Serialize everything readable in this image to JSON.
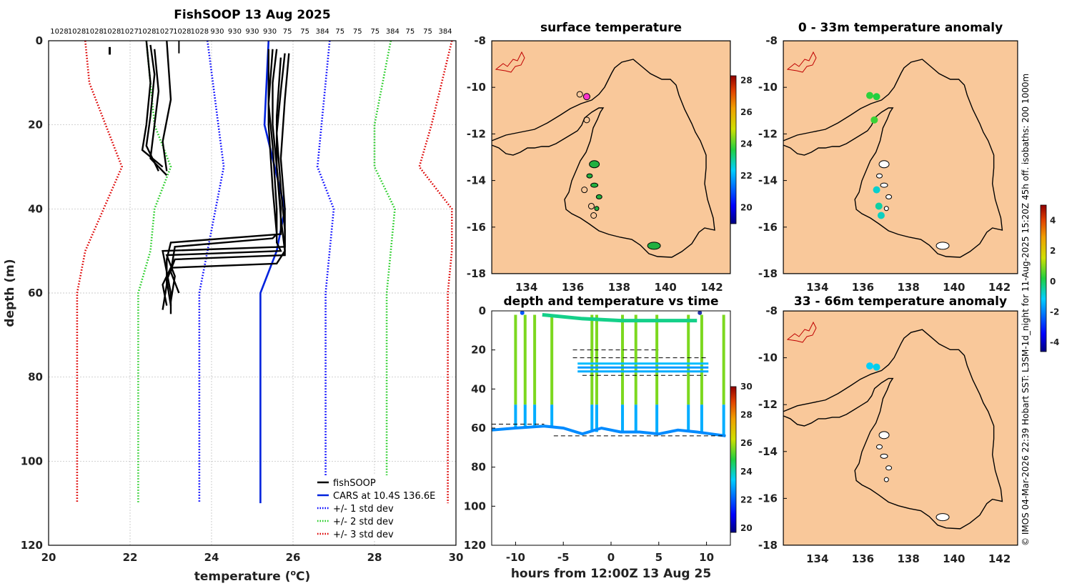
{
  "profile": {
    "title": "FishSOOP 13 Aug 2025",
    "xlabel": "temperature (",
    "xlabel_sup": "o",
    "xlabel_end": "C)",
    "ylabel": "depth (m)",
    "top_labels": [
      "1028",
      "1028",
      "1028",
      "1028",
      "1027",
      "1028",
      "1027",
      "1028",
      "1028",
      "930",
      "930",
      "930",
      "930",
      "75",
      "75",
      "384",
      "75",
      "75",
      "75",
      "384",
      "75",
      "75",
      "384"
    ],
    "legend": [
      "fishSOOP",
      "CARS at 10.4S 136.6E",
      "+/- 1 std dev",
      "+/- 2 std dev",
      "+/- 3 std dev"
    ],
    "colors": {
      "fishsoop": "#000000",
      "cars": "#0022dd",
      "std1": "#0000ff",
      "std2": "#22cc22",
      "std3": "#dd0000"
    }
  },
  "surface_map": {
    "title": "surface temperature",
    "colorbar_ticks": [
      "28",
      "26",
      "24",
      "22",
      "20"
    ]
  },
  "time_plot": {
    "title": "depth and temperature vs time",
    "xlabel": "hours from 12:00Z 13 Aug 25",
    "colorbar_ticks": [
      "30",
      "28",
      "26",
      "24",
      "22",
      "20"
    ]
  },
  "anom_map_1": {
    "title": "0 - 33m temperature anomaly"
  },
  "anom_map_2": {
    "title": "33 - 66m temperature anomaly"
  },
  "anom_colorbar_ticks": [
    "4",
    "2",
    "0",
    "-2",
    "-4"
  ],
  "credit": "© IMOS 04-Mar-2026 22:39 Hobart SST: L3SM-1d_night for 11-Aug-2025 15:20Z 45h off. isobaths: 200  1000m",
  "chart_data": [
    {
      "type": "line",
      "title": "FishSOOP 13 Aug 2025",
      "xlabel": "temperature (oC)",
      "ylabel": "depth (m)",
      "xlim": [
        20,
        30
      ],
      "ylim": [
        120,
        0
      ],
      "xticks": [
        20,
        22,
        24,
        26,
        28,
        30
      ],
      "yticks": [
        0,
        20,
        40,
        60,
        80,
        100,
        120
      ],
      "grid": true,
      "legend_position": "bottom-right",
      "series": [
        {
          "name": "CARS at 10.4S 136.6E",
          "depth": [
            0,
            20,
            40,
            50,
            60,
            110
          ],
          "temp": [
            25.4,
            25.3,
            25.8,
            25.6,
            25.2,
            25.2
          ]
        },
        {
          "name": "+/- 1 std dev",
          "depth": [
            0,
            30,
            60,
            110
          ],
          "temp": [
            23.9,
            24.3,
            23.7,
            23.7
          ]
        },
        {
          "name": "+/- 1 std dev",
          "depth": [
            0,
            20,
            30,
            40,
            60,
            110
          ],
          "temp": [
            26.9,
            26.7,
            26.6,
            27.0,
            26.8,
            26.8
          ]
        },
        {
          "name": "+/- 2 std dev",
          "depth": [
            0,
            20,
            30,
            40,
            50,
            60,
            110
          ],
          "temp": [
            22.4,
            22.6,
            23.0,
            22.6,
            22.5,
            22.2,
            22.2
          ]
        },
        {
          "name": "+/- 2 std dev",
          "depth": [
            0,
            20,
            30,
            40,
            60,
            110
          ],
          "temp": [
            28.4,
            28.0,
            28.0,
            28.5,
            28.3,
            28.3
          ]
        },
        {
          "name": "+/- 3 std dev",
          "depth": [
            0,
            10,
            20,
            30,
            50,
            60,
            110
          ],
          "temp": [
            20.9,
            21.0,
            21.4,
            21.8,
            20.9,
            20.7,
            20.7
          ]
        },
        {
          "name": "+/- 3 std dev",
          "depth": [
            0,
            20,
            30,
            40,
            50,
            60,
            110
          ],
          "temp": [
            29.9,
            29.4,
            29.1,
            29.9,
            29.9,
            29.8,
            29.8
          ]
        }
      ],
      "fishsoop_casts": [
        {
          "depth": [
            0,
            10,
            20,
            26,
            30
          ],
          "temp": [
            22.4,
            22.5,
            22.4,
            22.3,
            22.8
          ]
        },
        {
          "depth": [
            2,
            12,
            20,
            28,
            32
          ],
          "temp": [
            22.6,
            22.7,
            22.6,
            22.5,
            22.9
          ]
        },
        {
          "depth": [
            1,
            8,
            18,
            25,
            31
          ],
          "temp": [
            22.5,
            22.6,
            22.5,
            22.4,
            22.7
          ]
        },
        {
          "depth": [
            0,
            14,
            24,
            31
          ],
          "temp": [
            22.9,
            23.0,
            22.8,
            22.9
          ]
        },
        {
          "depth": [
            2,
            10,
            20,
            30,
            40,
            46,
            48,
            52,
            58,
            64
          ],
          "temp": [
            25.6,
            25.5,
            25.5,
            25.6,
            25.7,
            25.7,
            23.0,
            22.9,
            22.9,
            22.8
          ]
        },
        {
          "depth": [
            3,
            12,
            22,
            35,
            45,
            49,
            50,
            55,
            60,
            65
          ],
          "temp": [
            25.8,
            25.7,
            25.6,
            25.7,
            25.8,
            25.8,
            22.8,
            22.9,
            23.0,
            23.0
          ]
        },
        {
          "depth": [
            2,
            15,
            25,
            40,
            48,
            50,
            51,
            56,
            62
          ],
          "temp": [
            25.5,
            25.4,
            25.5,
            25.6,
            25.6,
            25.7,
            22.9,
            23.1,
            23.0
          ]
        },
        {
          "depth": [
            4,
            18,
            30,
            42,
            50,
            53,
            54,
            58,
            63
          ],
          "temp": [
            25.7,
            25.6,
            25.6,
            25.7,
            25.8,
            25.6,
            23.0,
            22.8,
            22.9
          ]
        },
        {
          "depth": [
            2,
            8,
            20,
            35,
            46,
            47,
            49,
            55,
            60
          ],
          "temp": [
            25.4,
            25.4,
            25.4,
            25.5,
            25.6,
            25.5,
            23.1,
            23.0,
            23.2
          ]
        },
        {
          "depth": [
            3,
            14,
            28,
            40,
            51,
            52,
            57,
            63
          ],
          "temp": [
            25.9,
            25.8,
            25.7,
            25.8,
            25.8,
            23.1,
            22.9,
            23.0
          ]
        }
      ]
    },
    {
      "type": "map",
      "title": "surface temperature",
      "xlim": [
        132.5,
        142.8
      ],
      "ylim": [
        -18,
        -8
      ],
      "xticks": [
        134,
        136,
        138,
        140,
        142
      ],
      "yticks": [
        -8,
        -10,
        -12,
        -14,
        -16,
        -18
      ],
      "colorbar_range": [
        19,
        28.3
      ],
      "colorbar_ticks": [
        20,
        22,
        24,
        26,
        28
      ]
    },
    {
      "type": "scatter",
      "title": "depth and temperature vs time",
      "xlabel": "hours from 12:00Z 13 Aug 25",
      "xlim": [
        -12.5,
        12.5
      ],
      "ylim": [
        120,
        0
      ],
      "xticks": [
        -10,
        -5,
        0,
        5,
        10
      ],
      "yticks": [
        0,
        20,
        40,
        60,
        80,
        100,
        120
      ],
      "colorbar_range": [
        19.7,
        30
      ],
      "colorbar_ticks": [
        20,
        22,
        24,
        26,
        28,
        30
      ],
      "bottom_trace": {
        "hours": [
          -12.5,
          -10,
          -7,
          -5,
          -3,
          -1,
          1,
          3,
          5,
          7,
          9,
          10.5,
          12
        ],
        "depth": [
          61,
          60,
          59,
          60,
          63,
          60,
          62,
          62,
          63,
          61,
          62,
          63,
          64
        ]
      },
      "casts_hours": [
        -10,
        -9,
        -8,
        -6.2,
        -2,
        -1.5,
        1.2,
        2.6,
        4.8,
        8.1,
        9.5,
        11.8
      ],
      "cast_depth": [
        60,
        60,
        60,
        60,
        62,
        62,
        62,
        62,
        63,
        62,
        63,
        64
      ],
      "surface_hours": [
        -7.2,
        -3,
        1,
        4,
        9
      ],
      "surface_depth": [
        2,
        4,
        5,
        5,
        5
      ]
    },
    {
      "type": "map",
      "title": "0 - 33m temperature anomaly",
      "xlim": [
        132.5,
        142.8
      ],
      "ylim": [
        -18,
        -8
      ],
      "points": [
        {
          "lon": 136.3,
          "lat": -10.35,
          "anom": 0.3
        },
        {
          "lon": 136.6,
          "lat": -10.4,
          "anom": 0.2
        },
        {
          "lon": 136.5,
          "lat": -11.4,
          "anom": 0.4
        },
        {
          "lon": 136.6,
          "lat": -14.4,
          "anom": -0.8
        },
        {
          "lon": 136.7,
          "lat": -15.1,
          "anom": -0.5
        },
        {
          "lon": 136.8,
          "lat": -15.5,
          "anom": -0.7
        }
      ]
    },
    {
      "type": "map",
      "title": "33 - 66m temperature anomaly",
      "xlim": [
        132.5,
        142.8
      ],
      "ylim": [
        -18,
        -8
      ],
      "points": [
        {
          "lon": 136.3,
          "lat": -10.35,
          "anom": -1.1
        },
        {
          "lon": 136.6,
          "lat": -10.4,
          "anom": -1.0
        }
      ],
      "colorbar_range": [
        -4.6,
        5
      ],
      "colorbar_ticks": [
        4,
        2,
        0,
        -2,
        -4
      ]
    }
  ]
}
